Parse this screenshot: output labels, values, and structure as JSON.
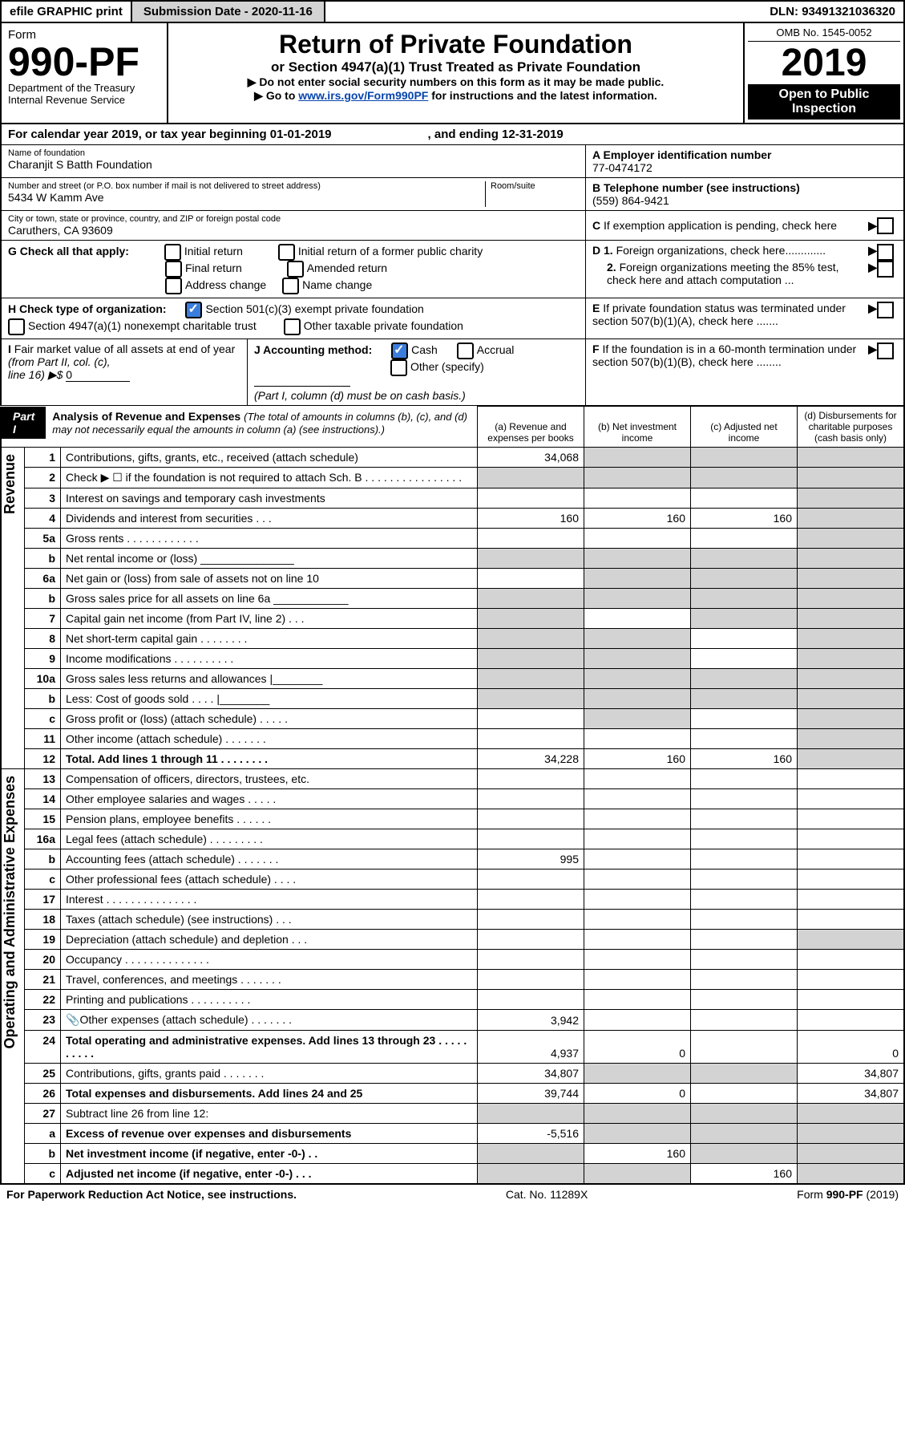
{
  "topbar": {
    "efile": "efile GRAPHIC print",
    "submission": "Submission Date - 2020-11-16",
    "dln": "DLN: 93491321036320"
  },
  "header": {
    "form": "Form",
    "formno": "990-PF",
    "dept": "Department of the Treasury",
    "irs": "Internal Revenue Service",
    "title": "Return of Private Foundation",
    "sub": "or Section 4947(a)(1) Trust Treated as Private Foundation",
    "note1": "▶ Do not enter social security numbers on this form as it may be made public.",
    "note2a": "▶ Go to ",
    "note2link": "www.irs.gov/Form990PF",
    "note2b": " for instructions and the latest information.",
    "omb": "OMB No. 1545-0052",
    "year": "2019",
    "inspect": "Open to Public Inspection"
  },
  "cal": {
    "a": "For calendar year 2019, or tax year beginning 01-01-2019",
    "b": ", and ending 12-31-2019"
  },
  "name": {
    "lbl": "Name of foundation",
    "val": "Charanjit S Batth Foundation"
  },
  "ein": {
    "lbl": "A Employer identification number",
    "val": "77-0474172"
  },
  "addr": {
    "lbl": "Number and street (or P.O. box number if mail is not delivered to street address)",
    "val": "5434 W Kamm Ave",
    "room": "Room/suite"
  },
  "tel": {
    "lbl": "B Telephone number (see instructions)",
    "val": "(559) 864-9421"
  },
  "city": {
    "lbl": "City or town, state or province, country, and ZIP or foreign postal code",
    "val": "Caruthers, CA  93609"
  },
  "c": "C If exemption application is pending, check here",
  "g": {
    "lbl": "G Check all that apply:",
    "o1": "Initial return",
    "o2": "Initial return of a former public charity",
    "o3": "Final return",
    "o4": "Amended return",
    "o5": "Address change",
    "o6": "Name change"
  },
  "d": {
    "d1": "D 1. Foreign organizations, check here.............",
    "d2": "2. Foreign organizations meeting the 85% test, check here and attach computation ..."
  },
  "h": {
    "lbl": "H Check type of organization:",
    "o1": "Section 501(c)(3) exempt private foundation",
    "o2": "Section 4947(a)(1) nonexempt charitable trust",
    "o3": "Other taxable private foundation"
  },
  "e": "E  If private foundation status was terminated under section 507(b)(1)(A), check here .......",
  "i": {
    "lbl": "I Fair market value of all assets at end of year (from Part II, col. (c),",
    "line": "line 16) ▶$ ",
    "val": "0"
  },
  "j": {
    "lbl": "J Accounting method:",
    "o1": "Cash",
    "o2": "Accrual",
    "o3": "Other (specify)",
    "note": "(Part I, column (d) must be on cash basis.)"
  },
  "f": "F  If the foundation is in a 60-month termination under section 507(b)(1)(B), check here ........",
  "part1": {
    "tag": "Part I",
    "title": "Analysis of Revenue and Expenses",
    "sub": "(The total of amounts in columns (b), (c), and (d) may not necessarily equal the amounts in column (a) (see instructions).)",
    "ca": "(a)   Revenue and expenses per books",
    "cb": "(b)  Net investment income",
    "cc": "(c)  Adjusted net income",
    "cd": "(d)  Disbursements for charitable purposes (cash basis only)"
  },
  "rev": "Revenue",
  "exp": "Operating and Administrative Expenses",
  "rows": [
    {
      "n": "1",
      "d": "Contributions, gifts, grants, etc., received (attach schedule)",
      "a": "34,068",
      "bg": [
        "",
        "g",
        "g",
        "g"
      ]
    },
    {
      "n": "2",
      "d": "Check ▶ ☐ if the foundation is not required to attach Sch. B  .  .  .  .  .  .  .  .  .  .  .  .  .  .  .  .",
      "bg": [
        "g",
        "g",
        "g",
        "g"
      ]
    },
    {
      "n": "3",
      "d": "Interest on savings and temporary cash investments",
      "bg": [
        "",
        "",
        "",
        "g"
      ]
    },
    {
      "n": "4",
      "d": "Dividends and interest from securities   .   .   .",
      "a": "160",
      "b": "160",
      "c": "160",
      "bg": [
        "",
        "",
        "",
        "g"
      ]
    },
    {
      "n": "5a",
      "d": "Gross rents    .   .   .   .   .   .   .   .   .   .   .   .",
      "bg": [
        "",
        "",
        "",
        "g"
      ]
    },
    {
      "n": "b",
      "d": "Net rental income or (loss)          _______________",
      "bg": [
        "g",
        "g",
        "g",
        "g"
      ]
    },
    {
      "n": "6a",
      "d": "Net gain or (loss) from sale of assets not on line 10",
      "bg": [
        "",
        "g",
        "g",
        "g"
      ]
    },
    {
      "n": "b",
      "d": "Gross sales price for all assets on line 6a  ____________",
      "bg": [
        "g",
        "g",
        "g",
        "g"
      ]
    },
    {
      "n": "7",
      "d": "Capital gain net income (from Part IV, line 2)    .   .   .",
      "bg": [
        "g",
        "",
        "g",
        "g"
      ]
    },
    {
      "n": "8",
      "d": "Net short-term capital gain   .   .   .   .   .   .   .   .",
      "bg": [
        "g",
        "g",
        "",
        "g"
      ]
    },
    {
      "n": "9",
      "d": "Income modifications  .   .   .   .   .   .   .   .   .   .",
      "bg": [
        "g",
        "g",
        "",
        "g"
      ]
    },
    {
      "n": "10a",
      "d": "Gross sales less returns and allowances  |________",
      "bg": [
        "g",
        "g",
        "g",
        "g"
      ]
    },
    {
      "n": "b",
      "d": "Less: Cost of goods sold     .   .   .   .    |________",
      "bg": [
        "g",
        "g",
        "g",
        "g"
      ]
    },
    {
      "n": "c",
      "d": "Gross profit or (loss) (attach schedule)   .   .   .   .   .",
      "bg": [
        "",
        "g",
        "",
        "g"
      ]
    },
    {
      "n": "11",
      "d": "Other income (attach schedule)   .   .   .   .   .   .   .",
      "bg": [
        "",
        "",
        "",
        "g"
      ]
    },
    {
      "n": "12",
      "d": "Total. Add lines 1 through 11   .   .   .   .   .   .   .   .",
      "a": "34,228",
      "b": "160",
      "c": "160",
      "bg": [
        "",
        "",
        "",
        "g"
      ],
      "bold": true
    }
  ],
  "erows": [
    {
      "n": "13",
      "d": "Compensation of officers, directors, trustees, etc.",
      "bg": [
        "",
        "",
        "",
        ""
      ]
    },
    {
      "n": "14",
      "d": "Other employee salaries and wages   .   .   .   .   .",
      "bg": [
        "",
        "",
        "",
        ""
      ]
    },
    {
      "n": "15",
      "d": "Pension plans, employee benefits    .   .   .   .   .   .",
      "bg": [
        "",
        "",
        "",
        ""
      ]
    },
    {
      "n": "16a",
      "d": "Legal fees (attach schedule)  .   .   .   .   .   .   .   .   .",
      "bg": [
        "",
        "",
        "",
        ""
      ]
    },
    {
      "n": "b",
      "d": "Accounting fees (attach schedule)  .   .   .   .   .   .   .",
      "a": "995",
      "bg": [
        "",
        "",
        "",
        ""
      ]
    },
    {
      "n": "c",
      "d": "Other professional fees (attach schedule)   .   .   .   .",
      "bg": [
        "",
        "",
        "",
        ""
      ]
    },
    {
      "n": "17",
      "d": "Interest   .   .   .   .   .   .   .   .   .   .   .   .   .   .   .",
      "bg": [
        "",
        "",
        "",
        ""
      ]
    },
    {
      "n": "18",
      "d": "Taxes (attach schedule) (see instructions)   .   .   .",
      "bg": [
        "",
        "",
        "",
        ""
      ]
    },
    {
      "n": "19",
      "d": "Depreciation (attach schedule) and depletion   .   .   .",
      "bg": [
        "",
        "",
        "",
        "g"
      ]
    },
    {
      "n": "20",
      "d": "Occupancy  .   .   .   .   .   .   .   .   .   .   .   .   .   .",
      "bg": [
        "",
        "",
        "",
        ""
      ]
    },
    {
      "n": "21",
      "d": "Travel, conferences, and meetings  .   .   .   .   .   .   .",
      "bg": [
        "",
        "",
        "",
        ""
      ]
    },
    {
      "n": "22",
      "d": "Printing and publications  .   .   .   .   .   .   .   .   .   .",
      "bg": [
        "",
        "",
        "",
        ""
      ]
    },
    {
      "n": "23",
      "d": "Other expenses (attach schedule)  .   .   .   .   .   .   .",
      "a": "3,942",
      "ic": true,
      "bg": [
        "",
        "",
        "",
        ""
      ]
    },
    {
      "n": "24",
      "d": "Total operating and administrative expenses. Add lines 13 through 23   .   .   .   .   .   .   .   .   .   .",
      "a": "4,937",
      "b": "0",
      "dv": "0",
      "bg": [
        "",
        "",
        "",
        ""
      ],
      "bold": true
    },
    {
      "n": "25",
      "d": "Contributions, gifts, grants paid    .   .   .   .   .   .   .",
      "a": "34,807",
      "dv": "34,807",
      "bg": [
        "",
        "g",
        "g",
        ""
      ]
    },
    {
      "n": "26",
      "d": "Total expenses and disbursements. Add lines 24 and 25",
      "a": "39,744",
      "b": "0",
      "dv": "34,807",
      "bg": [
        "",
        "",
        "",
        ""
      ],
      "bold": true
    },
    {
      "n": "27",
      "d": "Subtract line 26 from line 12:",
      "bg": [
        "g",
        "g",
        "g",
        "g"
      ]
    },
    {
      "n": "a",
      "d": "Excess of revenue over expenses and disbursements",
      "a": "-5,516",
      "bg": [
        "",
        "g",
        "g",
        "g"
      ],
      "bold": true
    },
    {
      "n": "b",
      "d": "Net investment income (if negative, enter -0-)   .   .",
      "b": "160",
      "bg": [
        "g",
        "",
        "g",
        "g"
      ],
      "bold": true
    },
    {
      "n": "c",
      "d": "Adjusted net income (if negative, enter -0-)   .   .   .",
      "c": "160",
      "bg": [
        "g",
        "g",
        "",
        "g"
      ],
      "bold": true
    }
  ],
  "footer": {
    "a": "For Paperwork Reduction Act Notice, see instructions.",
    "b": "Cat. No. 11289X",
    "c": "Form 990-PF (2019)"
  }
}
